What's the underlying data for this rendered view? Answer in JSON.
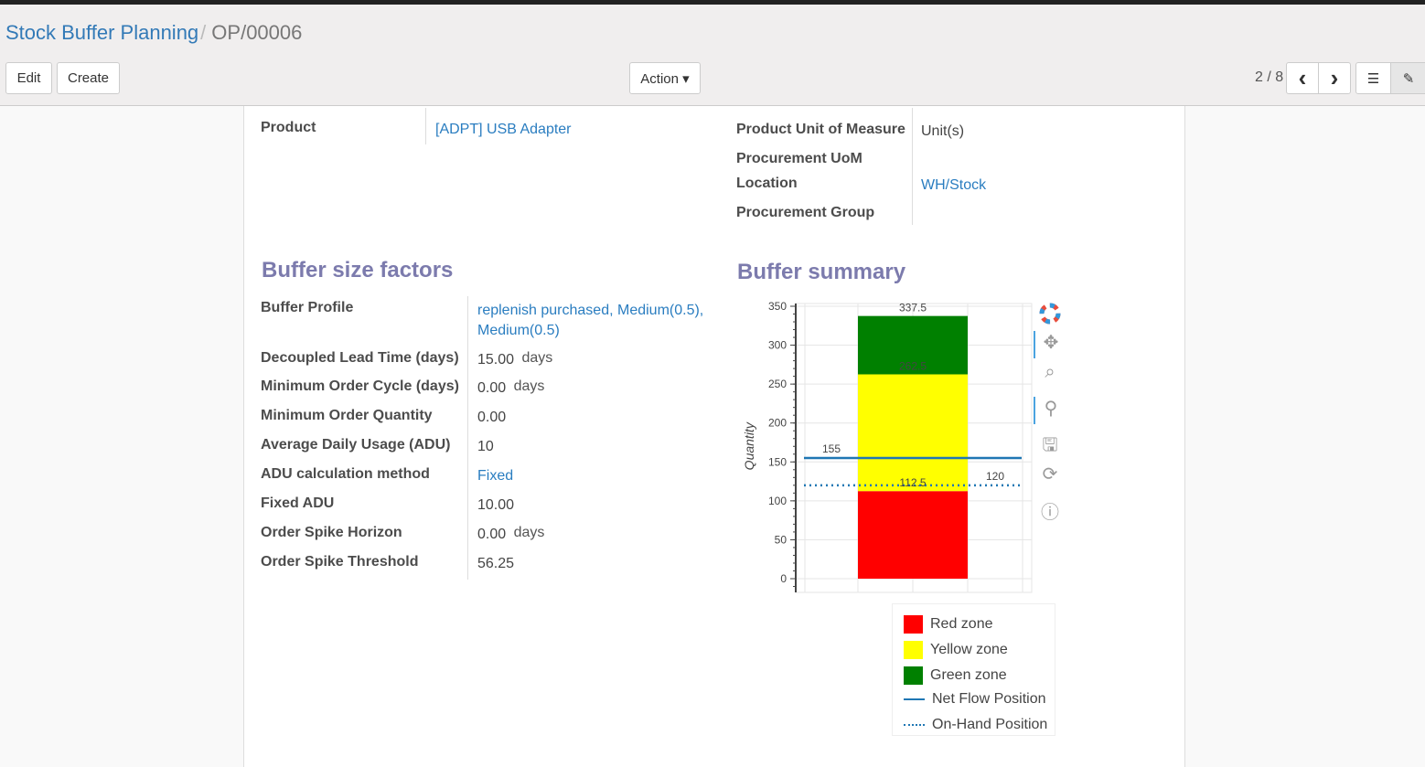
{
  "breadcrumb": {
    "parent": "Stock Buffer Planning",
    "separator": "/",
    "current": "OP/00006"
  },
  "toolbar": {
    "edit": "Edit",
    "create": "Create",
    "action": "Action ▾",
    "pager": "2 / 8",
    "prev": "‹",
    "next": "›"
  },
  "fields": {
    "product": {
      "label": "Product",
      "value": "[ADPT] USB Adapter"
    },
    "uom": {
      "label": "Product Unit of Measure",
      "value": "Unit(s)"
    },
    "proc_uom": {
      "label": "Procurement UoM",
      "value": ""
    },
    "location": {
      "label": "Location",
      "value": "WH/Stock"
    },
    "proc_group": {
      "label": "Procurement Group",
      "value": ""
    }
  },
  "factors": {
    "title": "Buffer size factors",
    "rows": [
      {
        "label": "Buffer Profile",
        "value": "replenish purchased, Medium(0.5),",
        "value2": "Medium(0.5)",
        "unit": ""
      },
      {
        "label": "Decoupled Lead Time (days)",
        "value": "15.00",
        "unit": "days"
      },
      {
        "label": "Minimum Order Cycle (days)",
        "value": "0.00",
        "unit": "days"
      },
      {
        "label": "Minimum Order Quantity",
        "value": "0.00",
        "unit": ""
      },
      {
        "label": "Average Daily Usage (ADU)",
        "value": "10",
        "unit": ""
      },
      {
        "label": "ADU calculation method",
        "value": "Fixed",
        "unit": ""
      },
      {
        "label": "Fixed ADU",
        "value": "10.00",
        "unit": ""
      },
      {
        "label": "Order Spike Horizon",
        "value": "0.00",
        "unit": "days"
      },
      {
        "label": "Order Spike Threshold",
        "value": "56.25",
        "unit": ""
      }
    ]
  },
  "summary": {
    "title": "Buffer summary"
  },
  "chart_data": {
    "type": "bar",
    "stacked": true,
    "ylabel": "Quantity",
    "ylim": [
      -10,
      350
    ],
    "yticks": [
      "0",
      "50",
      "100",
      "150",
      "200",
      "250",
      "300",
      "350"
    ],
    "grid": true,
    "legend_placement": "bottom",
    "series": [
      {
        "name": "Red zone",
        "from": 0,
        "to": 112.5,
        "color": "#ff0000"
      },
      {
        "name": "Yellow zone",
        "from": 112.5,
        "to": 262.5,
        "color": "#ffff00"
      },
      {
        "name": "Green zone",
        "from": 262.5,
        "to": 337.5,
        "color": "#008000"
      }
    ],
    "bar_labels": [
      "112.5",
      "262.5",
      "337.5"
    ],
    "lines": [
      {
        "name": "Net Flow Position",
        "value": 155,
        "label": "155",
        "style": "solid",
        "color": "#1f77b4"
      },
      {
        "name": "On-Hand Position",
        "value": 120,
        "label": "120",
        "style": "dotted",
        "color": "#1f77b4"
      }
    ]
  },
  "tools": [
    "bokeh-logo-icon",
    "pan-icon",
    "box-zoom-icon",
    "wheel-zoom-icon",
    "save-icon",
    "reset-icon",
    "help-icon"
  ]
}
